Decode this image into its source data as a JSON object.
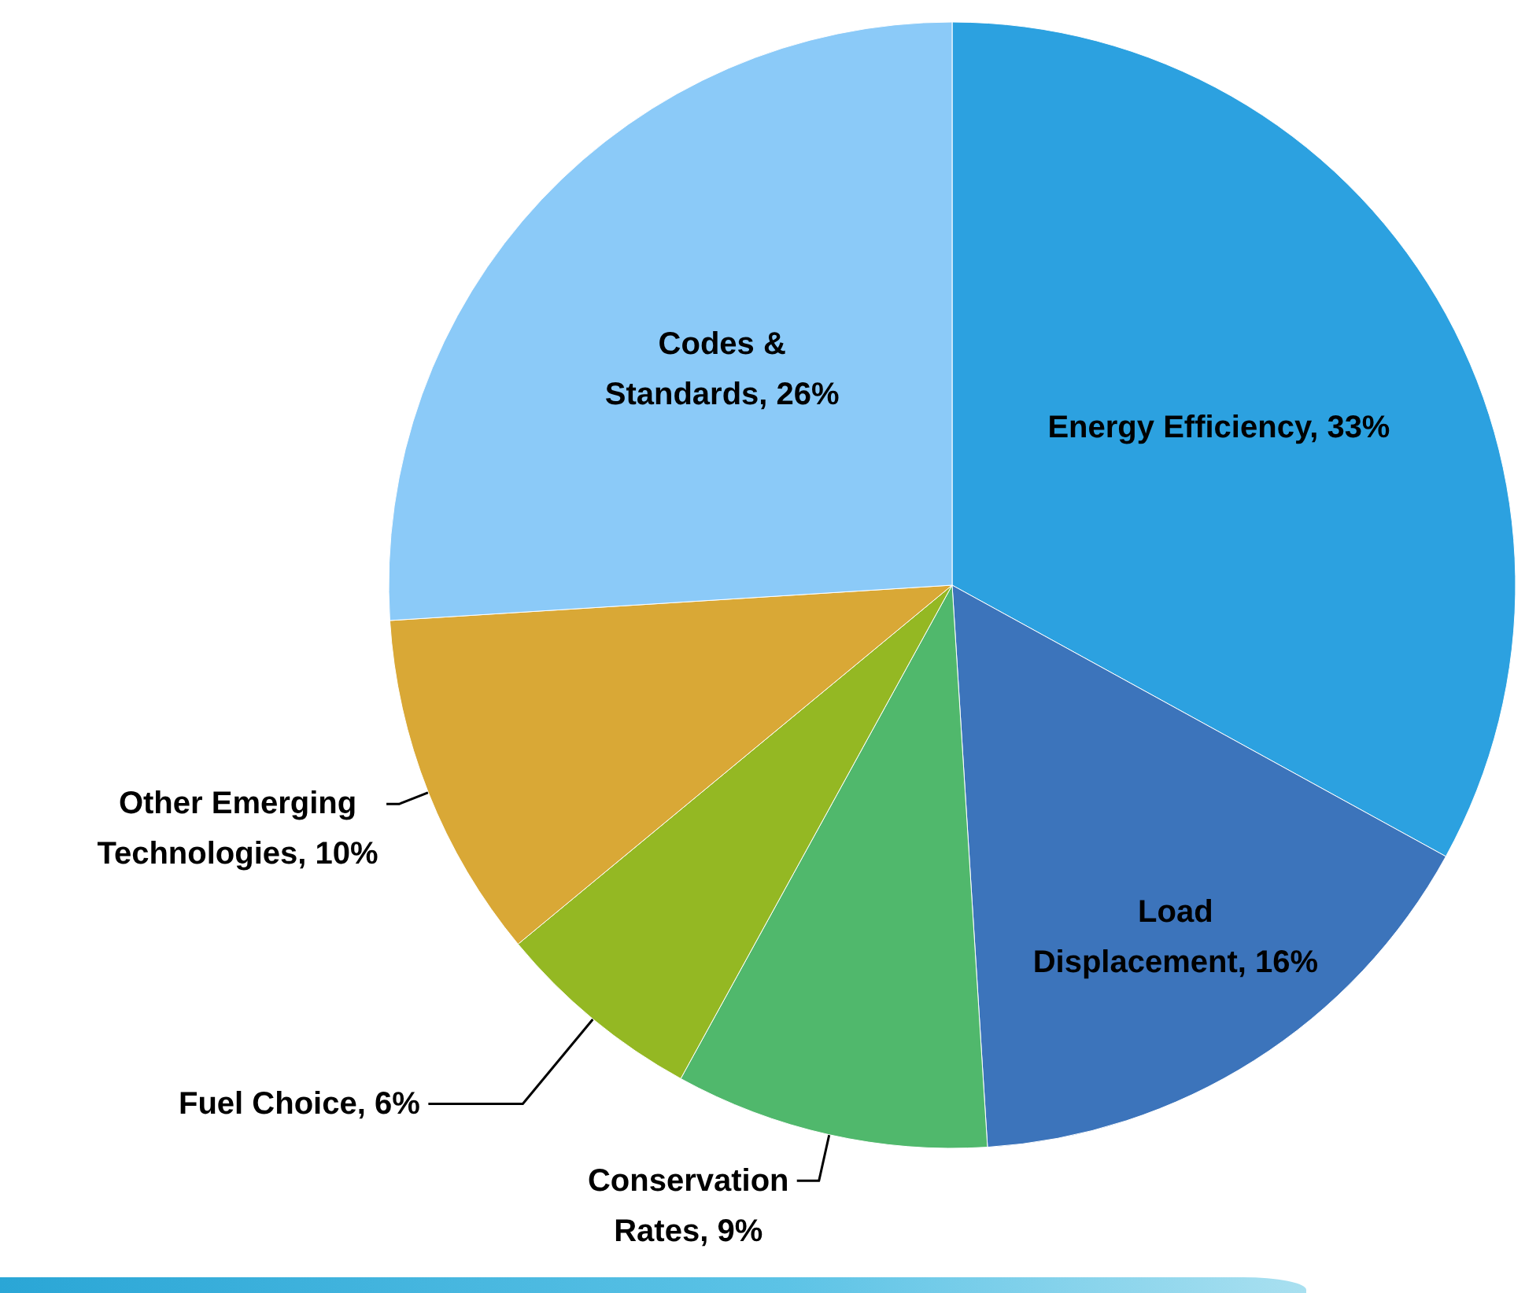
{
  "chart_data": {
    "type": "pie",
    "categories": [
      "Energy Efficiency",
      "Load Displacement",
      "Conservation Rates",
      "Fuel Choice",
      "Other Emerging Technologies",
      "Codes & Standards"
    ],
    "values": [
      33,
      16,
      9,
      6,
      10,
      26
    ],
    "value_labels": [
      "33%",
      "16%",
      "9%",
      "6%",
      "10%",
      "26%"
    ],
    "colors": [
      "#2ca1e0",
      "#3c74bb",
      "#50b86c",
      "#94b823",
      "#d9a836",
      "#8bcaf8"
    ],
    "legend": false
  }
}
